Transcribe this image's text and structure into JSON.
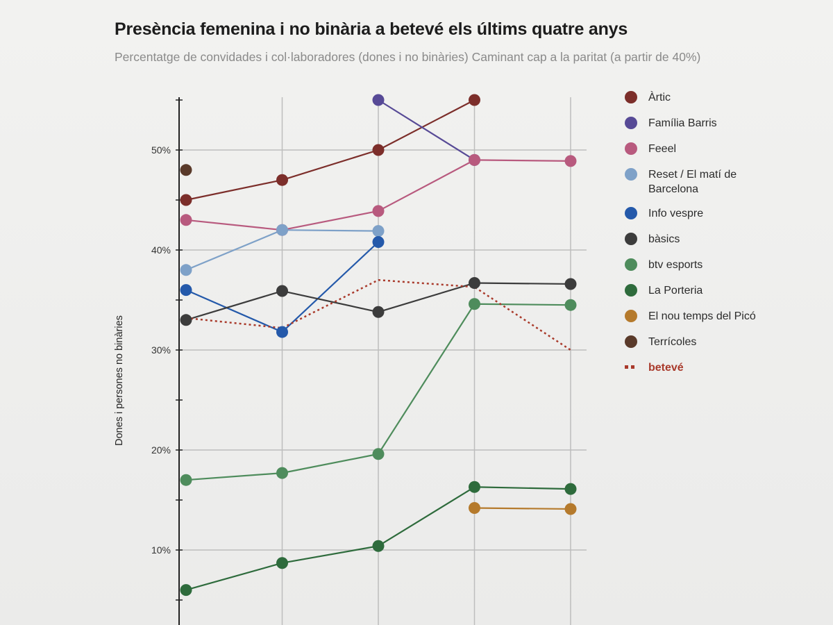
{
  "title": "Presència femenina i no binària a betevé els últims quatre anys",
  "subtitle": "Percentatge de convidades i col·laboradores (dones i no binàries) Caminant cap a la paritat (a partir de 40%)",
  "chart_data": {
    "type": "line",
    "title": "Presència femenina i no binària a betevé els últims quatre anys",
    "subtitle": "Percentatge de convidades i col·laboradores (dones i no binàries) Caminant cap a la paritat (a partir de 40%)",
    "ylabel": "Dones i persones no binàries",
    "xlabel": "",
    "x": [
      1,
      2,
      3,
      4,
      5
    ],
    "ylim": [
      0,
      55
    ],
    "yticks": [
      10,
      20,
      30,
      40,
      50
    ],
    "ytick_labels": [
      "10%",
      "20%",
      "30%",
      "40%",
      "50%"
    ],
    "grid": true,
    "legend_position": "right",
    "series": [
      {
        "name": "Àrtic",
        "color": "#7c2e2a",
        "style": "solid",
        "values": [
          45,
          47,
          50,
          55,
          null
        ]
      },
      {
        "name": "Família Barris",
        "color": "#574a96",
        "style": "solid",
        "values": [
          null,
          null,
          55,
          49,
          null
        ]
      },
      {
        "name": "Feeel",
        "color": "#b85a7e",
        "style": "solid",
        "values": [
          43,
          42,
          43.9,
          49,
          48.9
        ]
      },
      {
        "name": "Reset / El matí de Barcelona",
        "color": "#7ea1c8",
        "style": "solid",
        "values": [
          38,
          42,
          41.9,
          null,
          null
        ]
      },
      {
        "name": "Info vespre",
        "color": "#2459aa",
        "style": "solid",
        "values": [
          36,
          31.8,
          40.8,
          null,
          null
        ]
      },
      {
        "name": "bàsics",
        "color": "#3c3c3c",
        "style": "solid",
        "values": [
          33,
          35.9,
          33.8,
          36.7,
          36.6
        ]
      },
      {
        "name": "btv esports",
        "color": "#4e8c5c",
        "style": "solid",
        "values": [
          17,
          17.7,
          19.6,
          34.6,
          34.5
        ]
      },
      {
        "name": "La Porteria",
        "color": "#2e6b3c",
        "style": "solid",
        "values": [
          6,
          8.7,
          10.4,
          16.3,
          16.1
        ]
      },
      {
        "name": "El nou temps del Picó",
        "color": "#b57a2c",
        "style": "solid",
        "values": [
          null,
          null,
          null,
          14.2,
          14.1
        ]
      },
      {
        "name": "Terrícoles",
        "color": "#5a3a2a",
        "style": "solid",
        "values": [
          48,
          null,
          null,
          null,
          null
        ]
      },
      {
        "name": "betevé",
        "color": "#a93a2b",
        "style": "dotted",
        "values": [
          33.2,
          32.2,
          37,
          36.3,
          30
        ]
      }
    ]
  }
}
